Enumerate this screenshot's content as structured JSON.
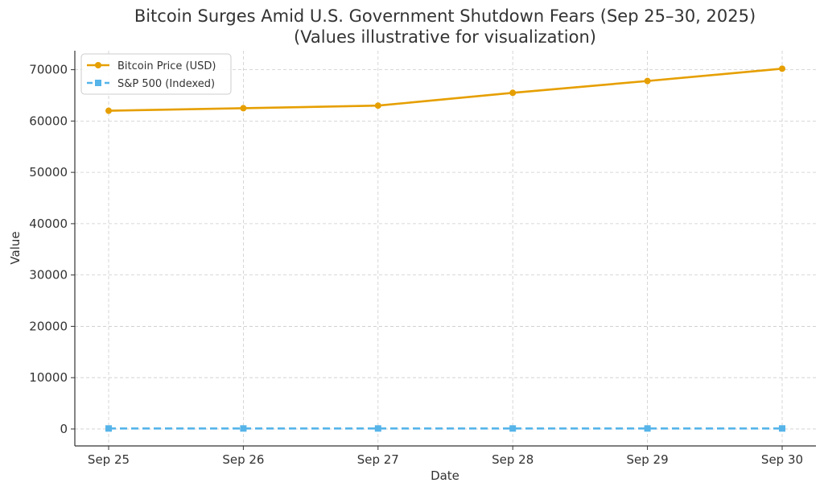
{
  "chart_data": {
    "type": "line",
    "title": "Bitcoin Surges Amid U.S. Government Shutdown Fears (Sep 25–30, 2025)",
    "subtitle": "(Values illustrative for visualization)",
    "xlabel": "Date",
    "ylabel": "Value",
    "categories": [
      "Sep 25",
      "Sep 26",
      "Sep 27",
      "Sep 28",
      "Sep 29",
      "Sep 30"
    ],
    "ylim": [
      -3300,
      73700
    ],
    "yticks": [
      0,
      10000,
      20000,
      30000,
      40000,
      50000,
      60000,
      70000
    ],
    "grid": true,
    "legend_position": "top-left",
    "series": [
      {
        "name": "Bitcoin Price (USD)",
        "values": [
          62000,
          62500,
          63000,
          65500,
          67800,
          70200
        ],
        "color": "#E69F00",
        "line_style": "solid",
        "marker": "circle"
      },
      {
        "name": "S&P 500 (Indexed)",
        "values": [
          100,
          101,
          102,
          102,
          103,
          104
        ],
        "color": "#56B4E9",
        "line_style": "dashed",
        "marker": "square"
      }
    ]
  }
}
